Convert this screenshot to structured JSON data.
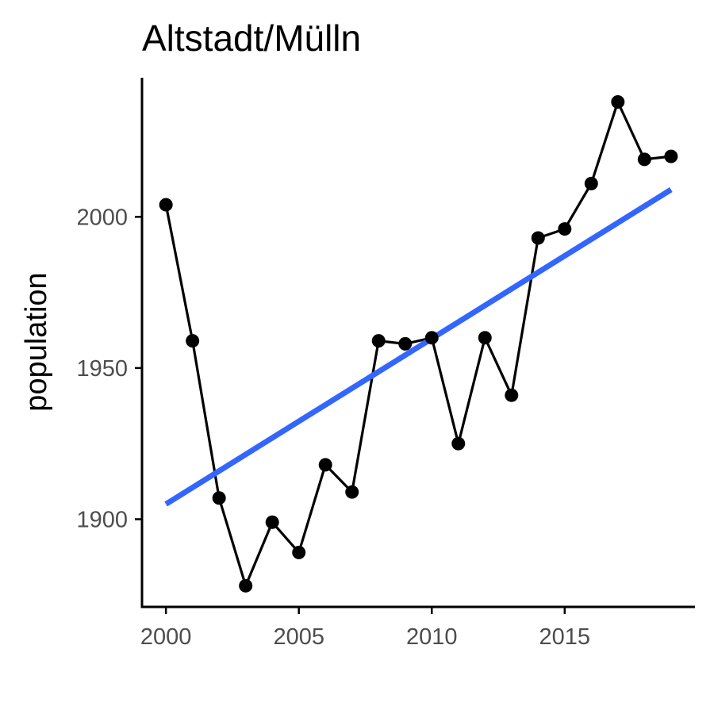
{
  "chart_data": {
    "type": "line",
    "title": "Altstadt/Mülln",
    "xlabel": "",
    "ylabel": "population",
    "x": [
      2000,
      2001,
      2002,
      2003,
      2004,
      2005,
      2006,
      2007,
      2008,
      2009,
      2010,
      2011,
      2012,
      2013,
      2014,
      2015,
      2016,
      2017,
      2018,
      2019
    ],
    "series": [
      {
        "values": [
          2004,
          1959,
          1907,
          1878,
          1899,
          1889,
          1918,
          1909,
          1959,
          1958,
          1960,
          1925,
          1960,
          1941,
          1993,
          1996,
          2011,
          2038,
          2019,
          2020
        ]
      }
    ],
    "trend": {
      "x": [
        2000,
        2019
      ],
      "y": [
        1905,
        2009
      ],
      "color": "#3366ff"
    },
    "xlim": [
      1999.1,
      2019.9
    ],
    "ylim": [
      1871,
      2046
    ],
    "xticks": [
      2000,
      2005,
      2010,
      2015
    ],
    "yticks": [
      1900,
      1950,
      2000
    ],
    "grid": false,
    "legend": "none"
  }
}
